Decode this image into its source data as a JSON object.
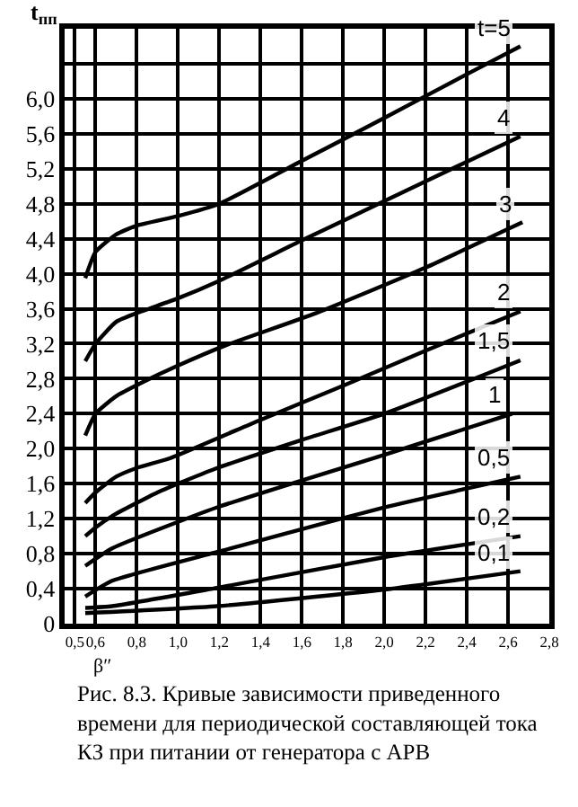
{
  "chart_data": {
    "type": "line",
    "ylabel": "t$_{пп}$",
    "xlabel": "β″",
    "xlim": [
      0.45,
      2.8
    ],
    "xticks": [
      {
        "value": 0.5,
        "label": "0,5"
      },
      {
        "value": 0.6,
        "label": "0,6"
      },
      {
        "value": 0.8,
        "label": "0,8"
      },
      {
        "value": 1.0,
        "label": "1,0"
      },
      {
        "value": 1.2,
        "label": "1,2"
      },
      {
        "value": 1.4,
        "label": "1,4"
      },
      {
        "value": 1.6,
        "label": "1,6"
      },
      {
        "value": 1.8,
        "label": "1,8"
      },
      {
        "value": 2.0,
        "label": "2,0"
      },
      {
        "value": 2.2,
        "label": "2,2"
      },
      {
        "value": 2.4,
        "label": "2,4"
      },
      {
        "value": 2.6,
        "label": "2,6"
      },
      {
        "value": 2.8,
        "label": "2,8"
      }
    ],
    "ylim": [
      0,
      6.8
    ],
    "yticks": [
      0,
      {
        "value": 0.4,
        "label": "0,4"
      },
      {
        "value": 0.8,
        "label": "0,8"
      },
      {
        "value": 1.2,
        "label": "1,2"
      },
      {
        "value": 1.6,
        "label": "1,6"
      },
      {
        "value": 2.0,
        "label": "2,0"
      },
      {
        "value": 2.4,
        "label": "2,4"
      },
      {
        "value": 2.8,
        "label": "2,8"
      },
      {
        "value": 3.2,
        "label": "3,2"
      },
      {
        "value": 3.6,
        "label": "3,6"
      },
      {
        "value": 4.0,
        "label": "4,0"
      },
      {
        "value": 4.4,
        "label": "4,4"
      },
      {
        "value": 4.8,
        "label": "4,8"
      },
      {
        "value": 5.2,
        "label": "5,2"
      },
      {
        "value": 5.6,
        "label": "5,6"
      },
      {
        "value": 6.0,
        "label": "6,0"
      },
      {
        "value": 6.4,
        "label": null
      },
      {
        "value": 6.8,
        "label": null
      }
    ],
    "grid": true,
    "legend": false,
    "marker": "none",
    "line_style": "solid",
    "series": [
      {
        "name": "t=5",
        "color": "#000000",
        "x": [
          0.55,
          0.6,
          0.7,
          0.8,
          1.0,
          1.2,
          1.6,
          2.0,
          2.4,
          2.66
        ],
        "values": [
          3.95,
          4.25,
          4.45,
          4.55,
          4.66,
          4.8,
          5.29,
          5.78,
          6.28,
          6.6
        ]
      },
      {
        "name": "4",
        "color": "#000000",
        "x": [
          0.55,
          0.6,
          0.7,
          0.8,
          1.0,
          1.2,
          1.6,
          2.0,
          2.4,
          2.66
        ],
        "values": [
          3.0,
          3.2,
          3.45,
          3.55,
          3.72,
          3.92,
          4.38,
          4.83,
          5.28,
          5.57
        ]
      },
      {
        "name": "3",
        "color": "#000000",
        "x": [
          0.55,
          0.6,
          0.7,
          0.82,
          1.0,
          1.23,
          1.67,
          2.2,
          2.67
        ],
        "values": [
          2.15,
          2.4,
          2.6,
          2.75,
          2.95,
          3.18,
          3.55,
          4.07,
          4.59
        ]
      },
      {
        "name": "2",
        "color": "#000000",
        "x": [
          0.55,
          0.6,
          0.7,
          0.8,
          0.96,
          1.4,
          1.8,
          2.2,
          2.66
        ],
        "values": [
          1.38,
          1.5,
          1.68,
          1.78,
          1.89,
          2.33,
          2.72,
          3.12,
          3.57
        ]
      },
      {
        "name": "1,5",
        "color": "#000000",
        "x": [
          0.55,
          0.6,
          0.68,
          0.9,
          1.19,
          1.6,
          2.0,
          2.66
        ],
        "values": [
          1.0,
          1.1,
          1.23,
          1.5,
          1.78,
          2.1,
          2.4,
          3.01
        ]
      },
      {
        "name": "1",
        "color": "#000000",
        "x": [
          0.55,
          0.68,
          1.19,
          2.0,
          2.62
        ],
        "values": [
          0.66,
          0.86,
          1.33,
          1.93,
          2.4
        ]
      },
      {
        "name": "0,5",
        "color": "#000000",
        "x": [
          0.55,
          0.68,
          1.19,
          2.0,
          2.66
        ],
        "values": [
          0.31,
          0.49,
          0.82,
          1.33,
          1.68
        ]
      },
      {
        "name": "0,2",
        "color": "#000000",
        "x": [
          0.55,
          0.68,
          1.19,
          2.0,
          2.66
        ],
        "values": [
          0.18,
          0.2,
          0.41,
          0.76,
          1.0
        ]
      },
      {
        "name": "0,1",
        "color": "#000000",
        "x": [
          0.55,
          1.19,
          2.0,
          2.66
        ],
        "values": [
          0.12,
          0.2,
          0.39,
          0.6
        ]
      }
    ],
    "annotations": [
      "Рис. 8.3. Кривые зависимости приведенного времени для периодической составляющей тока КЗ при питании от генератора с АРВ"
    ]
  }
}
